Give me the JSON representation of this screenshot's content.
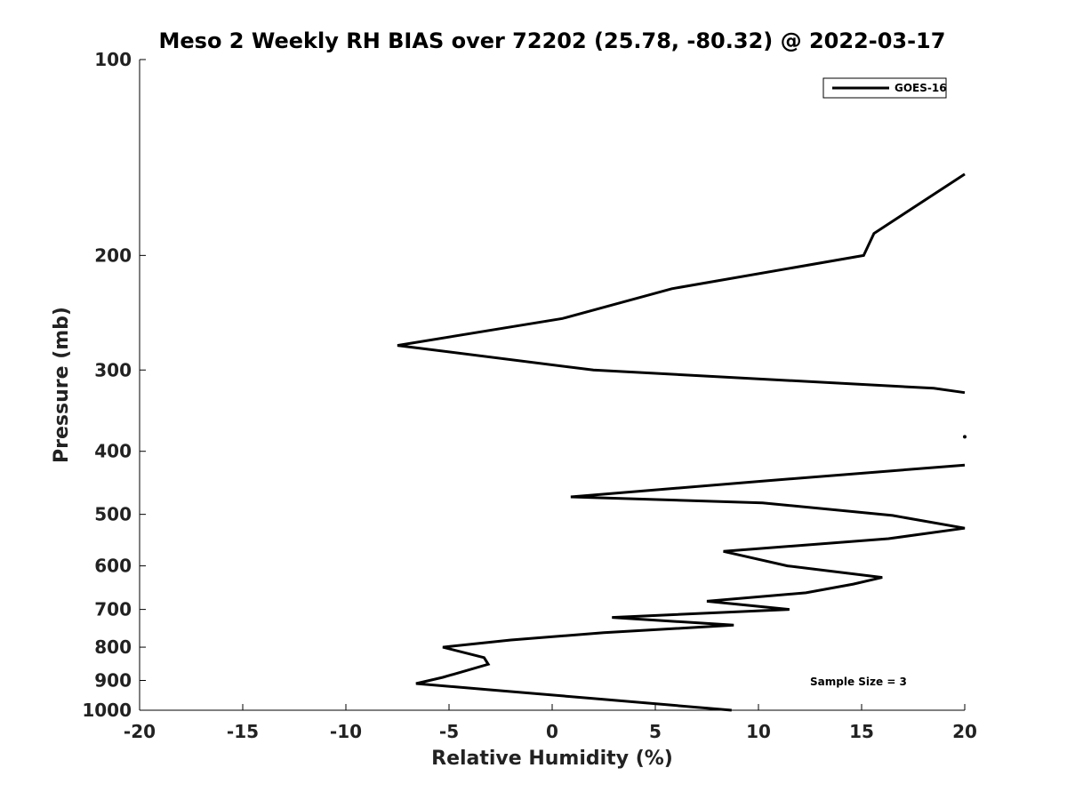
{
  "chart_data": {
    "type": "line",
    "title": "Meso 2 Weekly RH BIAS over 72202 (25.78, -80.32) @ 2022-03-17",
    "xlabel": "Relative Humidity (%)",
    "ylabel": "Pressure (mb)",
    "xlim": [
      -20,
      20
    ],
    "ylim": [
      1000,
      100
    ],
    "y_scale": "log",
    "y_inverted": true,
    "grid": false,
    "legend_position": "top-right",
    "x_ticks": [
      "-20",
      "-15",
      "-10",
      "-5",
      "0",
      "5",
      "10",
      "15",
      "20"
    ],
    "y_ticks": [
      "100",
      "200",
      "300",
      "400",
      "500",
      "600",
      "700",
      "800",
      "900",
      "1000"
    ],
    "annotation": "Sample Size = 3",
    "series": [
      {
        "name": "GOES-16",
        "color": "#000000",
        "segments": [
          [
            [
              20,
              150
            ],
            [
              15.6,
              185
            ],
            [
              15.1,
              200
            ],
            [
              5.8,
              225
            ],
            [
              0.5,
              250
            ],
            [
              -7.5,
              275
            ],
            [
              2.0,
              300
            ],
            [
              18.5,
              320
            ],
            [
              20,
              325
            ]
          ],
          [
            [
              20,
              380
            ]
          ],
          [
            [
              20,
              420
            ],
            [
              10.0,
              445
            ],
            [
              0.9,
              470
            ],
            [
              10.2,
              480
            ],
            [
              16.5,
              502
            ],
            [
              20,
              525
            ],
            [
              16.3,
              545
            ],
            [
              8.3,
              570
            ],
            [
              11.4,
              600
            ],
            [
              16.0,
              625
            ],
            [
              14.6,
              640
            ],
            [
              12.3,
              660
            ],
            [
              7.5,
              680
            ],
            [
              11.5,
              700
            ],
            [
              2.9,
              720
            ],
            [
              8.8,
              740
            ],
            [
              2.5,
              760
            ],
            [
              -2.0,
              780
            ],
            [
              -5.3,
              800
            ],
            [
              -3.3,
              830
            ],
            [
              -3.1,
              850
            ],
            [
              -4.2,
              870
            ],
            [
              -5.3,
              890
            ],
            [
              -6.6,
              910
            ],
            [
              -3.1,
              930
            ],
            [
              2.1,
              960
            ],
            [
              8.7,
              1000
            ]
          ]
        ]
      }
    ]
  }
}
